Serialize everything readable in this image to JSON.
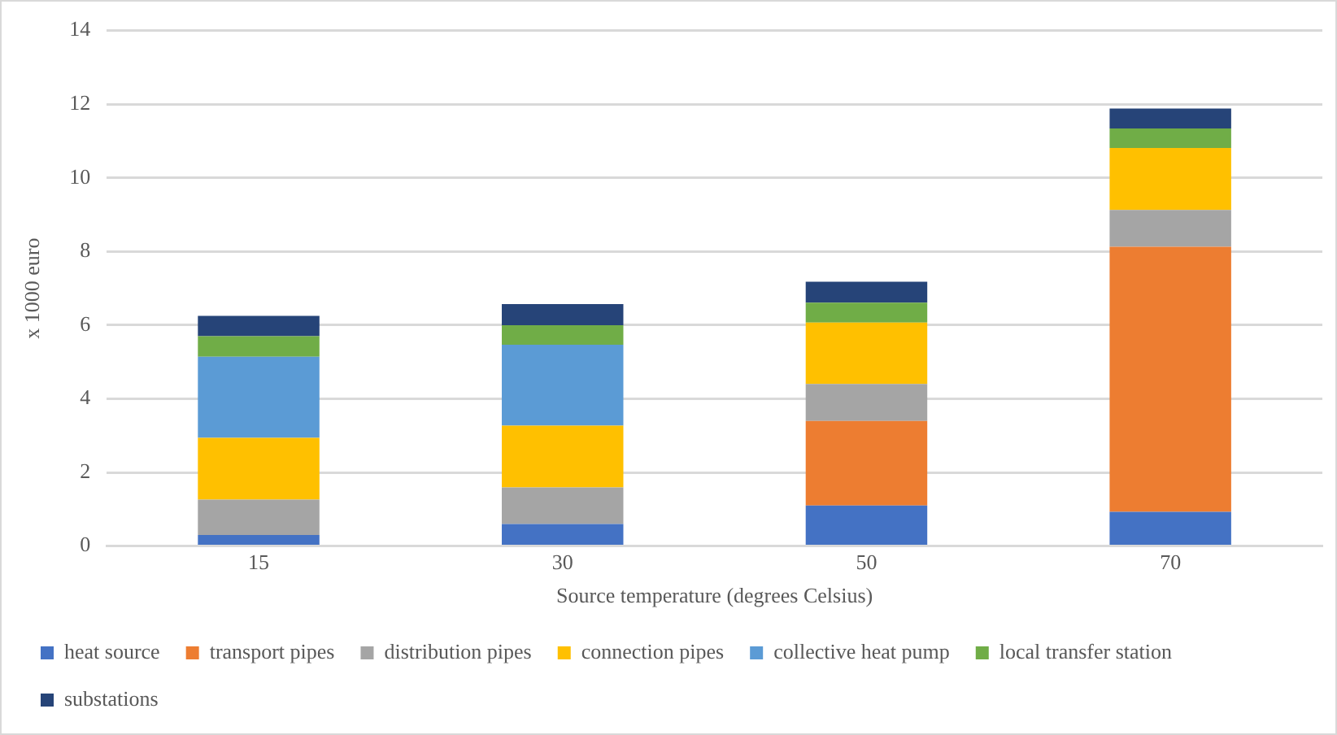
{
  "chart_data": {
    "type": "bar",
    "stacked": true,
    "xlabel": "Source temperature (degrees Celsius)",
    "ylabel": "x 1000 euro",
    "categories": [
      "15",
      "30",
      "50",
      "70"
    ],
    "series": [
      {
        "name": "heat source",
        "color": "#4472c4",
        "values": [
          0.3,
          0.6,
          1.1,
          0.93
        ]
      },
      {
        "name": "transport pipes",
        "color": "#ed7d31",
        "values": [
          0,
          0,
          2.3,
          7.2
        ]
      },
      {
        "name": "distribution pipes",
        "color": "#a5a5a5",
        "values": [
          0.96,
          0.99,
          1.0,
          1.0
        ]
      },
      {
        "name": "connection pipes",
        "color": "#ffc000",
        "values": [
          1.68,
          1.68,
          1.67,
          1.68
        ]
      },
      {
        "name": "collective heat pump",
        "color": "#5b9bd5",
        "values": [
          2.2,
          2.2,
          0,
          0
        ]
      },
      {
        "name": "local transfer station",
        "color": "#70ad47",
        "values": [
          0.56,
          0.53,
          0.54,
          0.53
        ]
      },
      {
        "name": "substations",
        "color": "#264478",
        "values": [
          0.55,
          0.57,
          0.57,
          0.54
        ]
      }
    ],
    "ylim": [
      0,
      14
    ],
    "yticks": [
      0,
      2,
      4,
      6,
      8,
      10,
      12,
      14
    ],
    "grid": "y",
    "legend": "bottom"
  }
}
